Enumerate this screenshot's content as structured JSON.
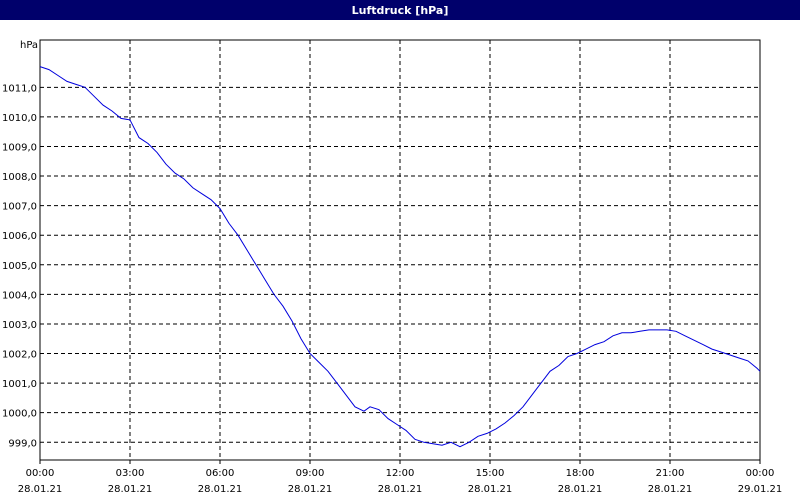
{
  "window": {
    "title": "Luftdruck [hPa]"
  },
  "colors": {
    "titlebar": "#00006b",
    "line": "#0000dd",
    "grid": "#000000"
  },
  "chart_data": {
    "type": "line",
    "title": "Luftdruck [hPa]",
    "ylabel": "hPa",
    "xlabel": "",
    "ylim": [
      998.4,
      1012.6
    ],
    "xlim_hours": [
      0,
      24
    ],
    "grid": true,
    "x_ticks": [
      {
        "hour": 0,
        "time": "00:00",
        "date": "28.01.21"
      },
      {
        "hour": 3,
        "time": "03:00",
        "date": "28.01.21"
      },
      {
        "hour": 6,
        "time": "06:00",
        "date": "28.01.21"
      },
      {
        "hour": 9,
        "time": "09:00",
        "date": "28.01.21"
      },
      {
        "hour": 12,
        "time": "12:00",
        "date": "28.01.21"
      },
      {
        "hour": 15,
        "time": "15:00",
        "date": "28.01.21"
      },
      {
        "hour": 18,
        "time": "18:00",
        "date": "28.01.21"
      },
      {
        "hour": 21,
        "time": "21:00",
        "date": "28.01.21"
      },
      {
        "hour": 24,
        "time": "00:00",
        "date": "29.01.21"
      }
    ],
    "y_ticks": [
      {
        "value": 999,
        "label": "999,0"
      },
      {
        "value": 1000,
        "label": "1000,0"
      },
      {
        "value": 1001,
        "label": "1001,0"
      },
      {
        "value": 1002,
        "label": "1002,0"
      },
      {
        "value": 1003,
        "label": "1003,0"
      },
      {
        "value": 1004,
        "label": "1004,0"
      },
      {
        "value": 1005,
        "label": "1005,0"
      },
      {
        "value": 1006,
        "label": "1006,0"
      },
      {
        "value": 1007,
        "label": "1007,0"
      },
      {
        "value": 1008,
        "label": "1008,0"
      },
      {
        "value": 1009,
        "label": "1009,0"
      },
      {
        "value": 1010,
        "label": "1010,0"
      },
      {
        "value": 1011,
        "label": "1011,0"
      }
    ],
    "series": [
      {
        "points": [
          [
            0.0,
            1011.7
          ],
          [
            0.3,
            1011.6
          ],
          [
            0.6,
            1011.4
          ],
          [
            0.9,
            1011.2
          ],
          [
            1.2,
            1011.1
          ],
          [
            1.5,
            1011.0
          ],
          [
            1.8,
            1010.7
          ],
          [
            2.1,
            1010.4
          ],
          [
            2.4,
            1010.2
          ],
          [
            2.7,
            1009.95
          ],
          [
            3.0,
            1009.9
          ],
          [
            3.1,
            1009.7
          ],
          [
            3.3,
            1009.3
          ],
          [
            3.6,
            1009.1
          ],
          [
            3.9,
            1008.8
          ],
          [
            4.2,
            1008.4
          ],
          [
            4.5,
            1008.1
          ],
          [
            4.8,
            1007.9
          ],
          [
            5.1,
            1007.6
          ],
          [
            5.4,
            1007.4
          ],
          [
            5.7,
            1007.2
          ],
          [
            6.0,
            1006.9
          ],
          [
            6.3,
            1006.4
          ],
          [
            6.6,
            1006.0
          ],
          [
            6.9,
            1005.5
          ],
          [
            7.2,
            1005.0
          ],
          [
            7.5,
            1004.5
          ],
          [
            7.8,
            1004.0
          ],
          [
            8.1,
            1003.6
          ],
          [
            8.4,
            1003.1
          ],
          [
            8.7,
            1002.5
          ],
          [
            9.0,
            1002.0
          ],
          [
            9.3,
            1001.7
          ],
          [
            9.6,
            1001.4
          ],
          [
            9.9,
            1001.0
          ],
          [
            10.2,
            1000.6
          ],
          [
            10.5,
            1000.2
          ],
          [
            10.8,
            1000.05
          ],
          [
            11.0,
            1000.2
          ],
          [
            11.3,
            1000.1
          ],
          [
            11.6,
            999.8
          ],
          [
            11.9,
            999.6
          ],
          [
            12.2,
            999.4
          ],
          [
            12.5,
            999.1
          ],
          [
            12.8,
            999.0
          ],
          [
            13.1,
            998.95
          ],
          [
            13.4,
            998.9
          ],
          [
            13.7,
            999.0
          ],
          [
            14.0,
            998.85
          ],
          [
            14.3,
            999.0
          ],
          [
            14.6,
            999.2
          ],
          [
            14.9,
            999.3
          ],
          [
            15.2,
            999.45
          ],
          [
            15.5,
            999.65
          ],
          [
            15.8,
            999.9
          ],
          [
            16.1,
            1000.2
          ],
          [
            16.4,
            1000.6
          ],
          [
            16.7,
            1001.0
          ],
          [
            17.0,
            1001.4
          ],
          [
            17.3,
            1001.6
          ],
          [
            17.6,
            1001.9
          ],
          [
            17.9,
            1002.0
          ],
          [
            18.2,
            1002.15
          ],
          [
            18.5,
            1002.3
          ],
          [
            18.8,
            1002.4
          ],
          [
            19.1,
            1002.6
          ],
          [
            19.4,
            1002.7
          ],
          [
            19.7,
            1002.7
          ],
          [
            20.0,
            1002.75
          ],
          [
            20.3,
            1002.8
          ],
          [
            20.6,
            1002.8
          ],
          [
            20.9,
            1002.8
          ],
          [
            21.2,
            1002.75
          ],
          [
            21.5,
            1002.6
          ],
          [
            21.8,
            1002.45
          ],
          [
            22.1,
            1002.3
          ],
          [
            22.4,
            1002.15
          ],
          [
            22.7,
            1002.05
          ],
          [
            23.0,
            1001.95
          ],
          [
            23.3,
            1001.85
          ],
          [
            23.6,
            1001.75
          ],
          [
            23.9,
            1001.5
          ],
          [
            24.0,
            1001.4
          ]
        ]
      }
    ]
  }
}
